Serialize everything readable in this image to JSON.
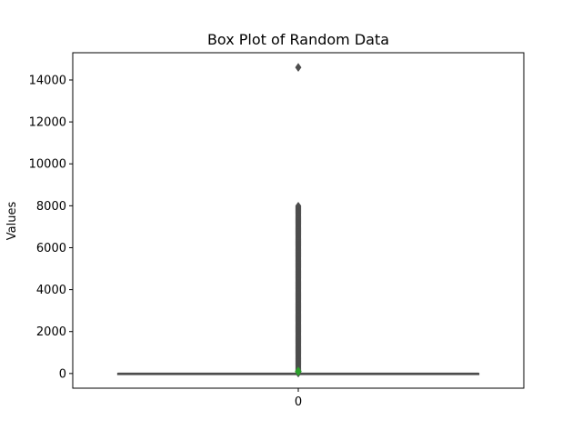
{
  "chart_data": {
    "type": "box",
    "title": "Box Plot of Random Data",
    "xlabel": "",
    "ylabel": "Values",
    "categories": [
      "0"
    ],
    "yticks": [
      0,
      2000,
      4000,
      6000,
      8000,
      10000,
      12000,
      14000
    ],
    "ytick_labels": [
      "0",
      "2000",
      "4000",
      "6000",
      "8000",
      "10000",
      "12000",
      "14000"
    ],
    "ylim": [
      -700,
      15300
    ],
    "grid": false,
    "boxes": [
      {
        "category": "0",
        "q1": 0,
        "median": 0,
        "q3": 0,
        "whisker_low": 0,
        "whisker_high": 0,
        "mean": 100,
        "outlier_range": [
          0,
          8000
        ],
        "max_outlier": 14600
      }
    ],
    "colors": {
      "box_line": "#4d4d4d",
      "outlier": "#4d4d4d",
      "mean_marker": "#2ca02c",
      "axes": "#000000"
    }
  }
}
